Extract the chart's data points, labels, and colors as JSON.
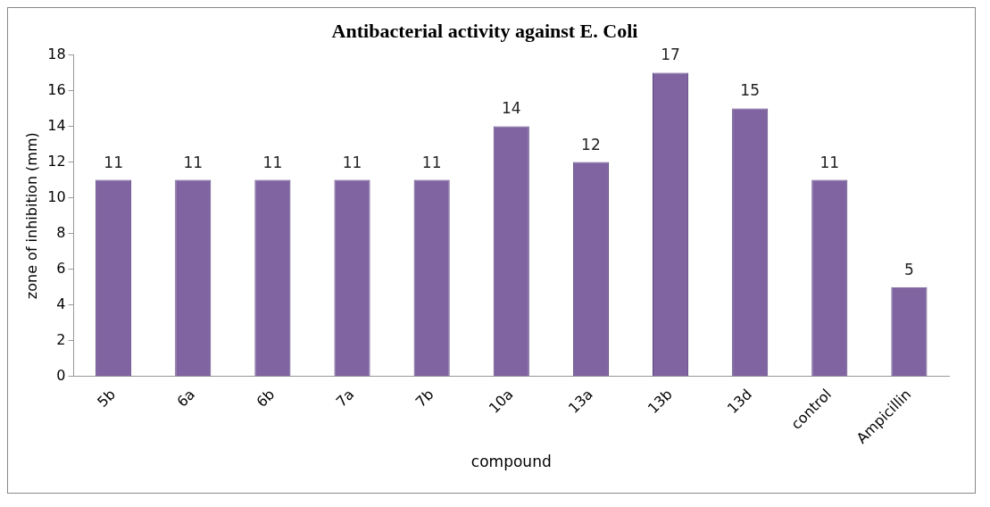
{
  "chart_data": {
    "type": "bar",
    "title": "Antibacterial activity against E. Coli",
    "xlabel": "compound",
    "ylabel": "zone of inhibition (mm)",
    "categories": [
      "5b",
      "6a",
      "6b",
      "7a",
      "7b",
      "10a",
      "13a",
      "13b",
      "13d",
      "control",
      "Ampicillin"
    ],
    "values": [
      11,
      11,
      11,
      11,
      11,
      14,
      12,
      17,
      15,
      11,
      5
    ],
    "color": "#8064a2",
    "ylim": [
      0,
      18
    ],
    "yticks": [
      0,
      2,
      4,
      6,
      8,
      10,
      12,
      14,
      16,
      18
    ],
    "grid": false,
    "legend": false,
    "data_labels": true
  }
}
